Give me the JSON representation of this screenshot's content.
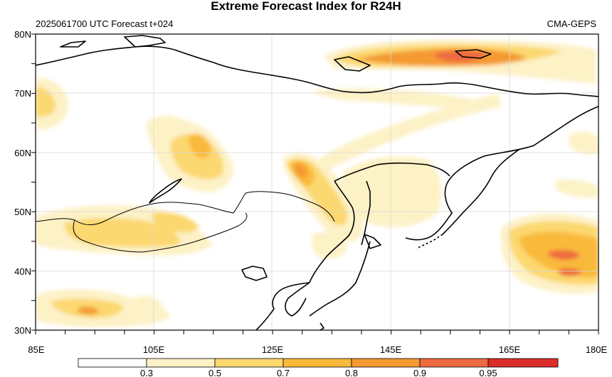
{
  "map": {
    "title": "Extreme Forecast Index for R24H",
    "init_label": "2025061700 UTC Forecast t+024",
    "model_label": "CMA-GEPS",
    "lat_labels": [
      "80N",
      "70N",
      "60N",
      "50N",
      "40N",
      "30N"
    ],
    "lon_labels": [
      "85E",
      "105E",
      "125E",
      "145E",
      "165E",
      "180E"
    ],
    "extent": {
      "lon_min": 85,
      "lon_max": 180,
      "lat_min": 30,
      "lat_max": 80
    }
  },
  "colorbar": {
    "thresholds": [
      "0.3",
      "0.5",
      "0.7",
      "0.8",
      "0.9",
      "0.95"
    ],
    "colors": [
      "#ffffff",
      "#fdf1c6",
      "#fcd870",
      "#f9b93a",
      "#f59a32",
      "#ee6a40",
      "#dd2d2a"
    ]
  },
  "colors": {
    "level1": "#fdf1c6",
    "level2": "#fcd870",
    "level3": "#f9b93a",
    "level4": "#f59a32",
    "level5": "#ee6a40",
    "level6": "#dd2d2a",
    "coast": "#000000",
    "grid": "#d9d9d9"
  }
}
